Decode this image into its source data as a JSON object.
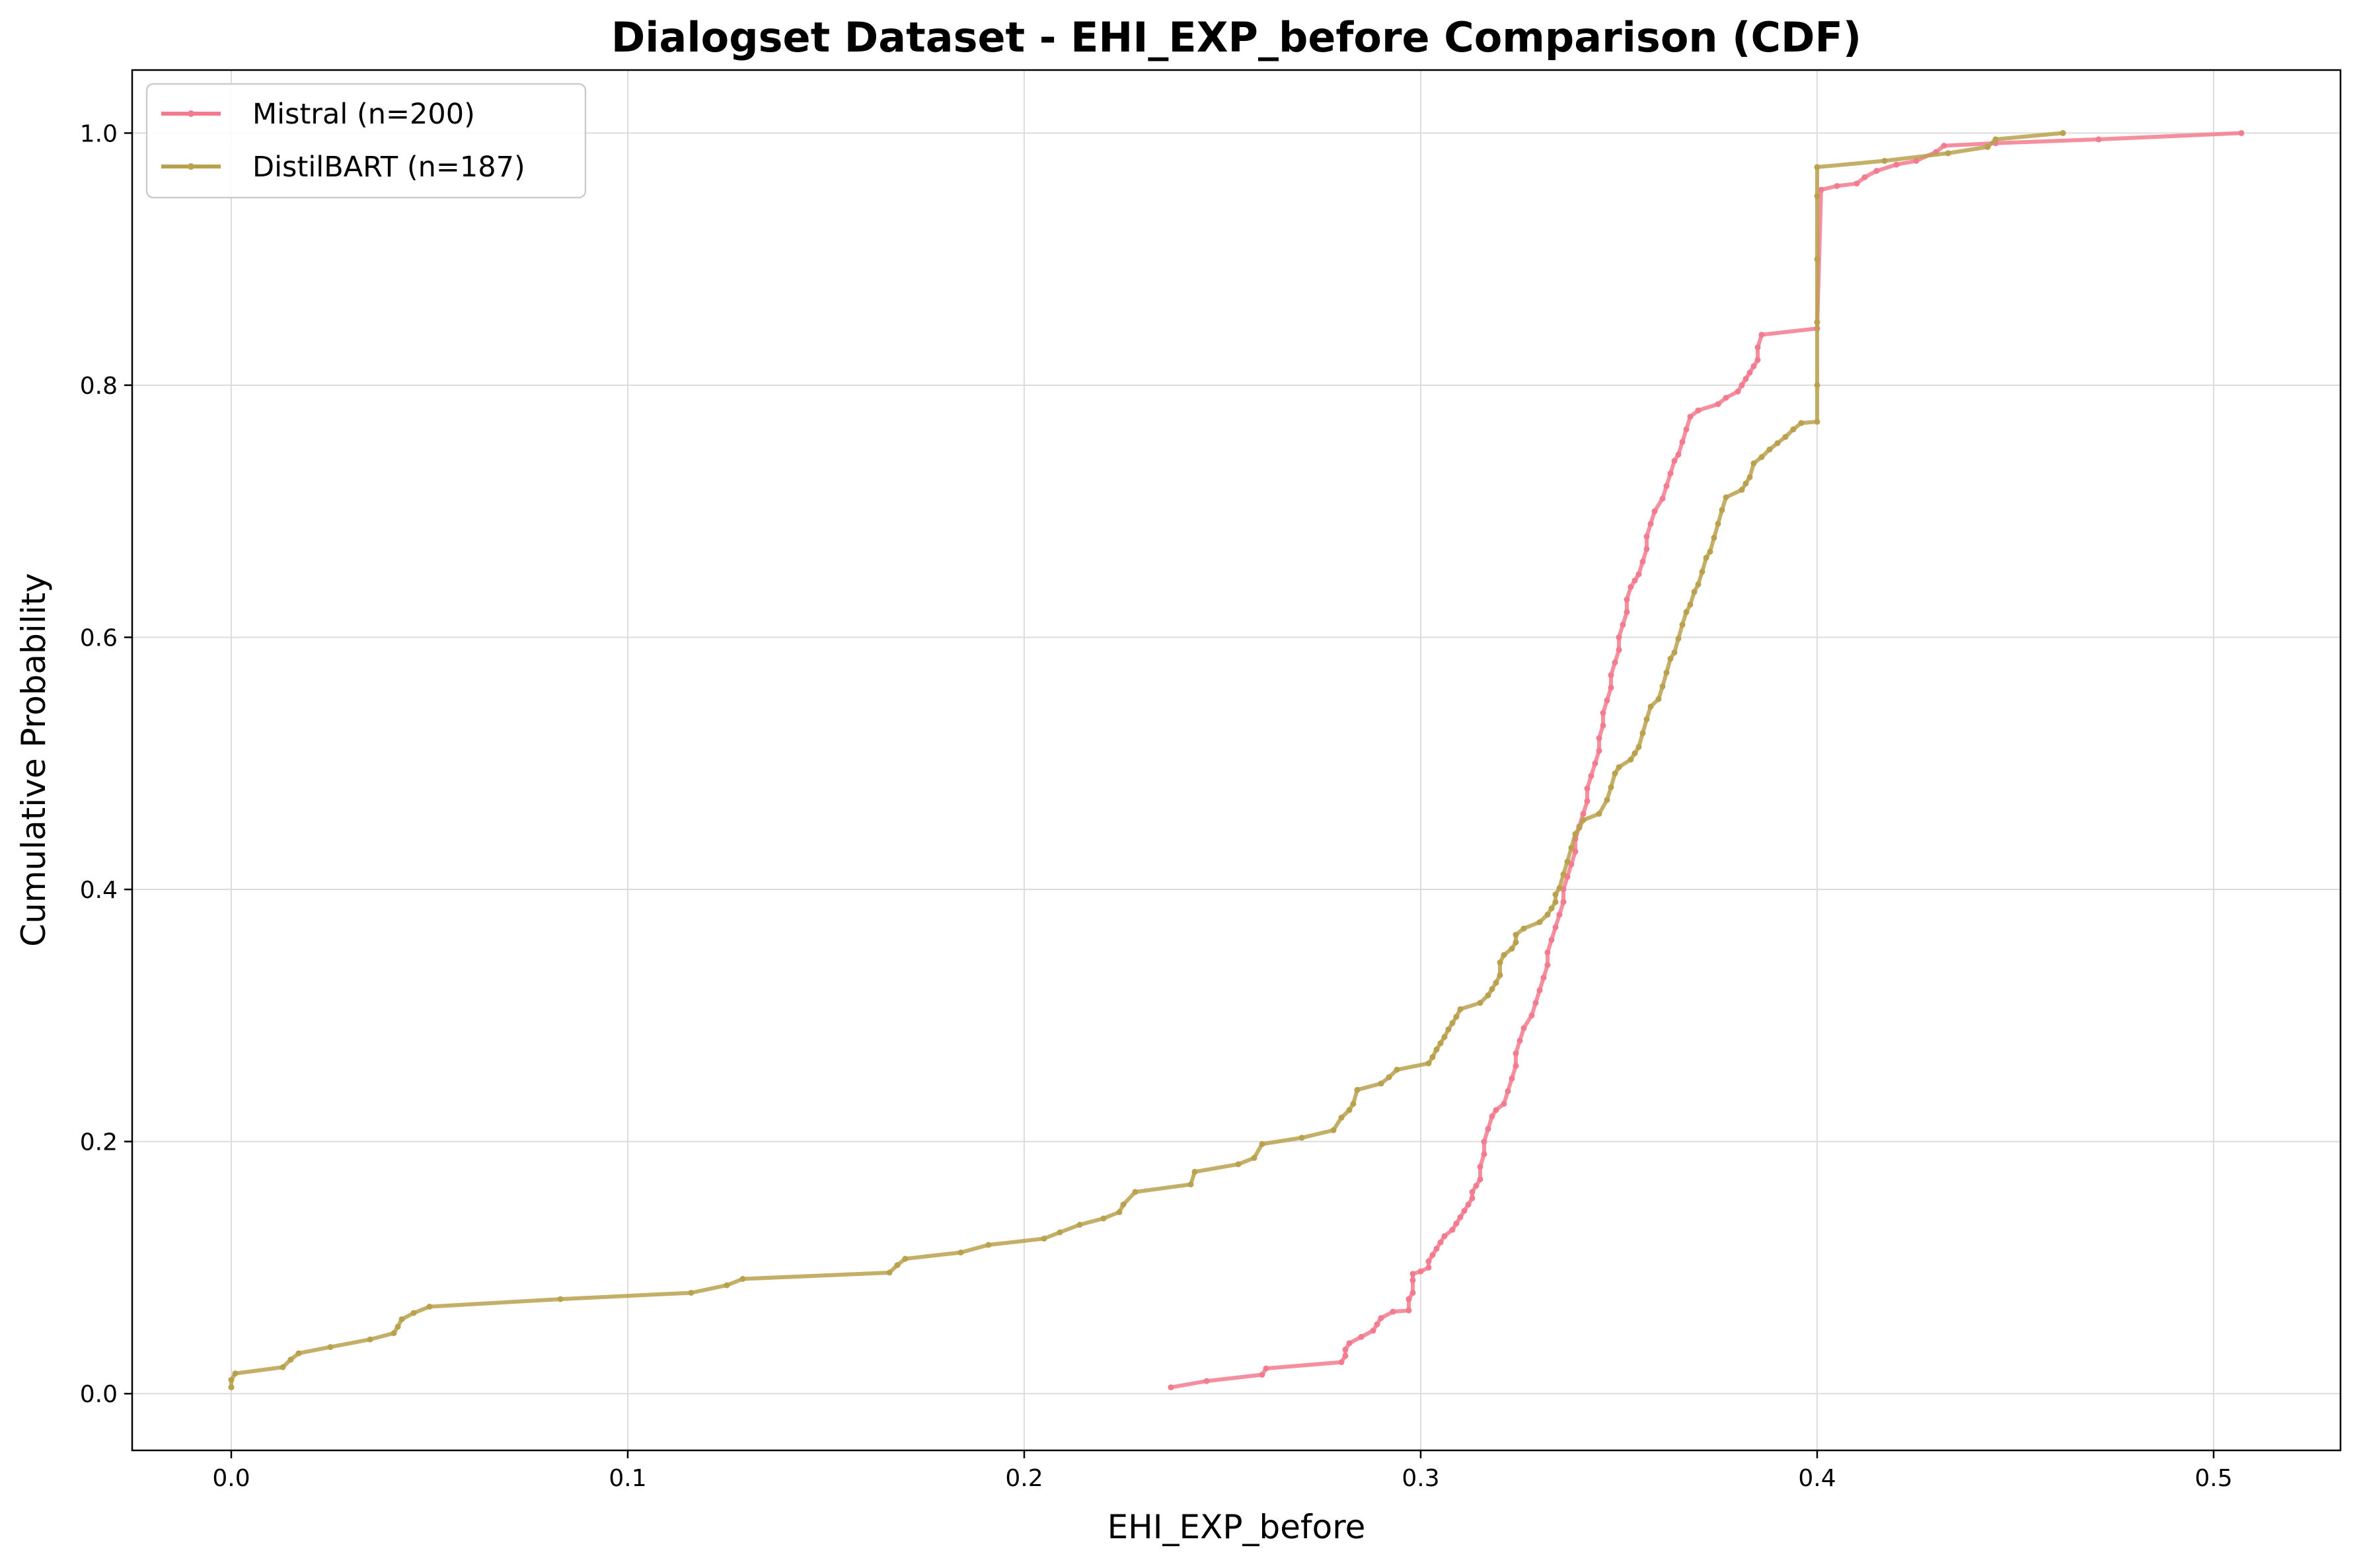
{
  "chart_data": {
    "type": "line",
    "title": "Dialogset Dataset - EHI_EXP_before Comparison (CDF)",
    "xlabel": "EHI_EXP_before",
    "ylabel": "Cumulative Probability",
    "xlim": [
      -0.025,
      0.532
    ],
    "ylim": [
      -0.045,
      1.05
    ],
    "xticks": [
      0.0,
      0.1,
      0.2,
      0.3,
      0.4,
      0.5
    ],
    "xtick_labels": [
      "0.0",
      "0.1",
      "0.2",
      "0.3",
      "0.4",
      "0.5"
    ],
    "yticks": [
      0.0,
      0.2,
      0.4,
      0.6,
      0.8,
      1.0
    ],
    "ytick_labels": [
      "0.0",
      "0.2",
      "0.4",
      "0.6",
      "0.8",
      "1.0"
    ],
    "grid": true,
    "legend_position": "top-left",
    "series": [
      {
        "name": "Mistral (n=200)",
        "color": "#f37b8f",
        "points": [
          [
            0.237,
            0.005
          ],
          [
            0.246,
            0.01
          ],
          [
            0.26,
            0.015
          ],
          [
            0.261,
            0.02
          ],
          [
            0.28,
            0.025
          ],
          [
            0.281,
            0.03
          ],
          [
            0.281,
            0.035
          ],
          [
            0.282,
            0.04
          ],
          [
            0.285,
            0.045
          ],
          [
            0.288,
            0.05
          ],
          [
            0.289,
            0.055
          ],
          [
            0.29,
            0.06
          ],
          [
            0.293,
            0.065
          ],
          [
            0.297,
            0.066
          ],
          [
            0.297,
            0.075
          ],
          [
            0.298,
            0.08
          ],
          [
            0.298,
            0.09
          ],
          [
            0.298,
            0.095
          ],
          [
            0.3,
            0.097
          ],
          [
            0.302,
            0.1
          ],
          [
            0.302,
            0.105
          ],
          [
            0.303,
            0.11
          ],
          [
            0.304,
            0.115
          ],
          [
            0.305,
            0.12
          ],
          [
            0.306,
            0.125
          ],
          [
            0.308,
            0.13
          ],
          [
            0.309,
            0.135
          ],
          [
            0.31,
            0.14
          ],
          [
            0.311,
            0.145
          ],
          [
            0.312,
            0.15
          ],
          [
            0.313,
            0.155
          ],
          [
            0.313,
            0.16
          ],
          [
            0.314,
            0.165
          ],
          [
            0.315,
            0.17
          ],
          [
            0.315,
            0.18
          ],
          [
            0.316,
            0.19
          ],
          [
            0.316,
            0.2
          ],
          [
            0.317,
            0.21
          ],
          [
            0.318,
            0.22
          ],
          [
            0.319,
            0.225
          ],
          [
            0.321,
            0.23
          ],
          [
            0.322,
            0.24
          ],
          [
            0.323,
            0.25
          ],
          [
            0.324,
            0.26
          ],
          [
            0.324,
            0.27
          ],
          [
            0.325,
            0.28
          ],
          [
            0.326,
            0.29
          ],
          [
            0.328,
            0.3
          ],
          [
            0.329,
            0.31
          ],
          [
            0.33,
            0.32
          ],
          [
            0.331,
            0.33
          ],
          [
            0.332,
            0.34
          ],
          [
            0.332,
            0.35
          ],
          [
            0.333,
            0.36
          ],
          [
            0.334,
            0.37
          ],
          [
            0.335,
            0.38
          ],
          [
            0.336,
            0.39
          ],
          [
            0.336,
            0.4
          ],
          [
            0.337,
            0.41
          ],
          [
            0.338,
            0.42
          ],
          [
            0.339,
            0.43
          ],
          [
            0.339,
            0.44
          ],
          [
            0.34,
            0.45
          ],
          [
            0.341,
            0.46
          ],
          [
            0.342,
            0.47
          ],
          [
            0.342,
            0.48
          ],
          [
            0.343,
            0.49
          ],
          [
            0.344,
            0.5
          ],
          [
            0.345,
            0.51
          ],
          [
            0.345,
            0.52
          ],
          [
            0.346,
            0.53
          ],
          [
            0.346,
            0.54
          ],
          [
            0.347,
            0.55
          ],
          [
            0.348,
            0.56
          ],
          [
            0.348,
            0.57
          ],
          [
            0.349,
            0.58
          ],
          [
            0.35,
            0.59
          ],
          [
            0.35,
            0.6
          ],
          [
            0.351,
            0.61
          ],
          [
            0.352,
            0.62
          ],
          [
            0.352,
            0.63
          ],
          [
            0.353,
            0.64
          ],
          [
            0.354,
            0.645
          ],
          [
            0.355,
            0.65
          ],
          [
            0.356,
            0.66
          ],
          [
            0.357,
            0.67
          ],
          [
            0.357,
            0.68
          ],
          [
            0.358,
            0.69
          ],
          [
            0.359,
            0.7
          ],
          [
            0.361,
            0.71
          ],
          [
            0.362,
            0.72
          ],
          [
            0.363,
            0.73
          ],
          [
            0.364,
            0.74
          ],
          [
            0.365,
            0.745
          ],
          [
            0.366,
            0.755
          ],
          [
            0.367,
            0.765
          ],
          [
            0.368,
            0.775
          ],
          [
            0.37,
            0.78
          ],
          [
            0.375,
            0.785
          ],
          [
            0.377,
            0.79
          ],
          [
            0.38,
            0.795
          ],
          [
            0.381,
            0.8
          ],
          [
            0.382,
            0.805
          ],
          [
            0.383,
            0.81
          ],
          [
            0.384,
            0.815
          ],
          [
            0.385,
            0.82
          ],
          [
            0.385,
            0.83
          ],
          [
            0.386,
            0.84
          ],
          [
            0.4,
            0.845
          ],
          [
            0.401,
            0.955
          ],
          [
            0.405,
            0.958
          ],
          [
            0.41,
            0.96
          ],
          [
            0.412,
            0.965
          ],
          [
            0.415,
            0.97
          ],
          [
            0.42,
            0.975
          ],
          [
            0.425,
            0.978
          ],
          [
            0.43,
            0.985
          ],
          [
            0.432,
            0.99
          ],
          [
            0.445,
            0.992
          ],
          [
            0.471,
            0.995
          ],
          [
            0.507,
            1.0
          ]
        ]
      },
      {
        "name": "DistilBART (n=187)",
        "color": "#b9a14e",
        "points": [
          [
            0.0,
            0.005
          ],
          [
            0.0,
            0.011
          ],
          [
            0.001,
            0.016
          ],
          [
            0.013,
            0.021
          ],
          [
            0.015,
            0.027
          ],
          [
            0.017,
            0.032
          ],
          [
            0.025,
            0.037
          ],
          [
            0.035,
            0.043
          ],
          [
            0.041,
            0.048
          ],
          [
            0.042,
            0.053
          ],
          [
            0.043,
            0.059
          ],
          [
            0.046,
            0.064
          ],
          [
            0.05,
            0.069
          ],
          [
            0.083,
            0.075
          ],
          [
            0.116,
            0.08
          ],
          [
            0.125,
            0.086
          ],
          [
            0.129,
            0.091
          ],
          [
            0.166,
            0.096
          ],
          [
            0.168,
            0.102
          ],
          [
            0.17,
            0.107
          ],
          [
            0.184,
            0.112
          ],
          [
            0.191,
            0.118
          ],
          [
            0.205,
            0.123
          ],
          [
            0.209,
            0.128
          ],
          [
            0.214,
            0.134
          ],
          [
            0.22,
            0.139
          ],
          [
            0.224,
            0.144
          ],
          [
            0.225,
            0.15
          ],
          [
            0.228,
            0.16
          ],
          [
            0.242,
            0.166
          ],
          [
            0.243,
            0.176
          ],
          [
            0.254,
            0.182
          ],
          [
            0.258,
            0.187
          ],
          [
            0.26,
            0.198
          ],
          [
            0.27,
            0.203
          ],
          [
            0.278,
            0.209
          ],
          [
            0.28,
            0.219
          ],
          [
            0.282,
            0.225
          ],
          [
            0.283,
            0.23
          ],
          [
            0.284,
            0.241
          ],
          [
            0.29,
            0.246
          ],
          [
            0.292,
            0.251
          ],
          [
            0.294,
            0.257
          ],
          [
            0.302,
            0.262
          ],
          [
            0.303,
            0.267
          ],
          [
            0.304,
            0.273
          ],
          [
            0.305,
            0.278
          ],
          [
            0.306,
            0.283
          ],
          [
            0.307,
            0.289
          ],
          [
            0.308,
            0.294
          ],
          [
            0.309,
            0.299
          ],
          [
            0.31,
            0.305
          ],
          [
            0.315,
            0.31
          ],
          [
            0.317,
            0.316
          ],
          [
            0.318,
            0.321
          ],
          [
            0.319,
            0.326
          ],
          [
            0.32,
            0.332
          ],
          [
            0.32,
            0.342
          ],
          [
            0.321,
            0.348
          ],
          [
            0.323,
            0.353
          ],
          [
            0.324,
            0.358
          ],
          [
            0.324,
            0.364
          ],
          [
            0.326,
            0.369
          ],
          [
            0.33,
            0.374
          ],
          [
            0.332,
            0.38
          ],
          [
            0.333,
            0.385
          ],
          [
            0.334,
            0.39
          ],
          [
            0.334,
            0.396
          ],
          [
            0.335,
            0.401
          ],
          [
            0.336,
            0.412
          ],
          [
            0.337,
            0.422
          ],
          [
            0.338,
            0.433
          ],
          [
            0.339,
            0.444
          ],
          [
            0.34,
            0.449
          ],
          [
            0.341,
            0.455
          ],
          [
            0.345,
            0.46
          ],
          [
            0.347,
            0.471
          ],
          [
            0.348,
            0.481
          ],
          [
            0.349,
            0.492
          ],
          [
            0.35,
            0.497
          ],
          [
            0.353,
            0.503
          ],
          [
            0.354,
            0.508
          ],
          [
            0.355,
            0.513
          ],
          [
            0.356,
            0.524
          ],
          [
            0.357,
            0.535
          ],
          [
            0.358,
            0.545
          ],
          [
            0.36,
            0.551
          ],
          [
            0.361,
            0.561
          ],
          [
            0.362,
            0.572
          ],
          [
            0.363,
            0.583
          ],
          [
            0.364,
            0.588
          ],
          [
            0.365,
            0.599
          ],
          [
            0.366,
            0.61
          ],
          [
            0.367,
            0.62
          ],
          [
            0.368,
            0.626
          ],
          [
            0.369,
            0.636
          ],
          [
            0.37,
            0.642
          ],
          [
            0.371,
            0.652
          ],
          [
            0.372,
            0.663
          ],
          [
            0.373,
            0.668
          ],
          [
            0.374,
            0.679
          ],
          [
            0.375,
            0.69
          ],
          [
            0.376,
            0.701
          ],
          [
            0.377,
            0.711
          ],
          [
            0.381,
            0.717
          ],
          [
            0.382,
            0.722
          ],
          [
            0.383,
            0.727
          ],
          [
            0.384,
            0.738
          ],
          [
            0.386,
            0.743
          ],
          [
            0.388,
            0.749
          ],
          [
            0.39,
            0.754
          ],
          [
            0.392,
            0.759
          ],
          [
            0.394,
            0.765
          ],
          [
            0.396,
            0.77
          ],
          [
            0.4,
            0.771
          ],
          [
            0.4,
            0.8
          ],
          [
            0.4,
            0.85
          ],
          [
            0.4,
            0.9
          ],
          [
            0.4,
            0.95
          ],
          [
            0.4,
            0.973
          ],
          [
            0.417,
            0.978
          ],
          [
            0.433,
            0.984
          ],
          [
            0.443,
            0.989
          ],
          [
            0.445,
            0.995
          ],
          [
            0.462,
            1.0
          ]
        ]
      }
    ]
  }
}
